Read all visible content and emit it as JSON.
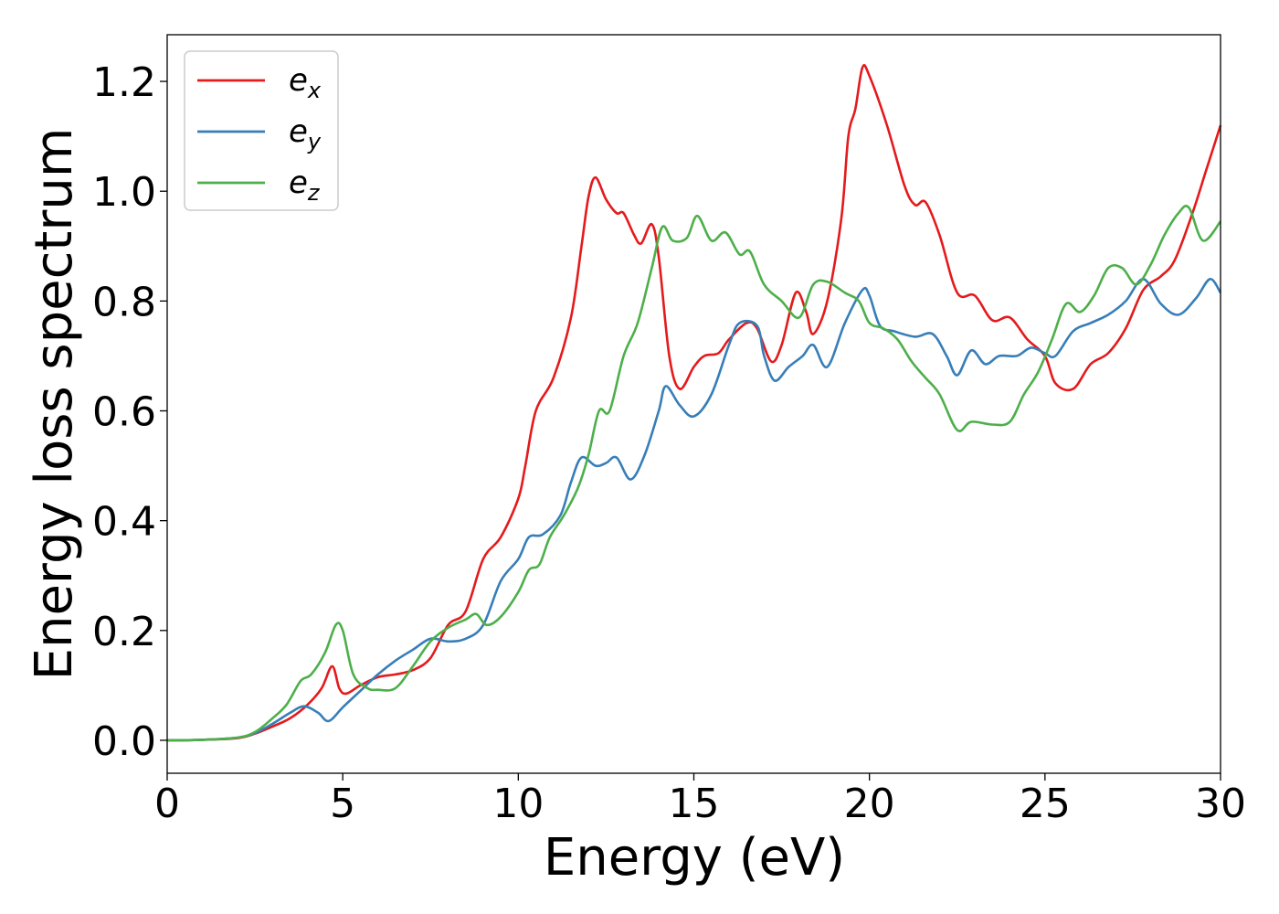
{
  "chart_data": {
    "type": "line",
    "xlabel": "Energy (eV)",
    "ylabel": "Energy loss spectrum",
    "xlim": [
      0,
      30
    ],
    "ylim": [
      -0.06,
      1.285
    ],
    "xticks": [
      0,
      5,
      10,
      15,
      20,
      25,
      30
    ],
    "yticks": [
      0.0,
      0.2,
      0.4,
      0.6,
      0.8,
      1.0,
      1.2
    ],
    "xtick_labels": [
      "0",
      "5",
      "10",
      "15",
      "20",
      "25",
      "30"
    ],
    "ytick_labels": [
      "0.0",
      "0.2",
      "0.4",
      "0.6",
      "0.8",
      "1.0",
      "1.2"
    ],
    "grid": false,
    "legend_position": "top-left",
    "series": [
      {
        "name": "e_x",
        "base": "e",
        "sub": "x",
        "color": "#e41a1c",
        "points": [
          [
            0,
            0
          ],
          [
            1,
            0.001
          ],
          [
            2,
            0.004
          ],
          [
            2.5,
            0.012
          ],
          [
            3,
            0.025
          ],
          [
            3.5,
            0.04
          ],
          [
            4,
            0.065
          ],
          [
            4.4,
            0.095
          ],
          [
            4.7,
            0.135
          ],
          [
            4.9,
            0.095
          ],
          [
            5.1,
            0.085
          ],
          [
            5.5,
            0.1
          ],
          [
            6,
            0.115
          ],
          [
            6.5,
            0.12
          ],
          [
            7,
            0.128
          ],
          [
            7.5,
            0.15
          ],
          [
            8,
            0.21
          ],
          [
            8.5,
            0.235
          ],
          [
            9,
            0.33
          ],
          [
            9.5,
            0.37
          ],
          [
            10,
            0.44
          ],
          [
            10.2,
            0.5
          ],
          [
            10.5,
            0.6
          ],
          [
            11,
            0.66
          ],
          [
            11.5,
            0.77
          ],
          [
            11.8,
            0.9
          ],
          [
            12,
            0.99
          ],
          [
            12.2,
            1.025
          ],
          [
            12.5,
            0.985
          ],
          [
            12.8,
            0.96
          ],
          [
            13,
            0.96
          ],
          [
            13.3,
            0.92
          ],
          [
            13.5,
            0.905
          ],
          [
            13.8,
            0.94
          ],
          [
            14,
            0.88
          ],
          [
            14.3,
            0.7
          ],
          [
            14.6,
            0.64
          ],
          [
            15,
            0.68
          ],
          [
            15.3,
            0.7
          ],
          [
            15.7,
            0.705
          ],
          [
            16,
            0.73
          ],
          [
            16.5,
            0.76
          ],
          [
            16.8,
            0.75
          ],
          [
            17.2,
            0.69
          ],
          [
            17.5,
            0.72
          ],
          [
            17.9,
            0.815
          ],
          [
            18.2,
            0.78
          ],
          [
            18.4,
            0.74
          ],
          [
            18.8,
            0.8
          ],
          [
            19.2,
            0.95
          ],
          [
            19.4,
            1.1
          ],
          [
            19.6,
            1.15
          ],
          [
            19.8,
            1.225
          ],
          [
            20,
            1.21
          ],
          [
            20.5,
            1.12
          ],
          [
            21,
            1.01
          ],
          [
            21.3,
            0.975
          ],
          [
            21.6,
            0.98
          ],
          [
            22,
            0.92
          ],
          [
            22.5,
            0.815
          ],
          [
            23,
            0.81
          ],
          [
            23.5,
            0.765
          ],
          [
            24,
            0.77
          ],
          [
            24.5,
            0.73
          ],
          [
            25,
            0.7
          ],
          [
            25.3,
            0.65
          ],
          [
            25.8,
            0.64
          ],
          [
            26.3,
            0.685
          ],
          [
            26.8,
            0.705
          ],
          [
            27.3,
            0.75
          ],
          [
            27.8,
            0.82
          ],
          [
            28.3,
            0.845
          ],
          [
            28.7,
            0.875
          ],
          [
            29.2,
            0.96
          ],
          [
            29.6,
            1.04
          ],
          [
            30,
            1.12
          ]
        ]
      },
      {
        "name": "e_y",
        "base": "e",
        "sub": "y",
        "color": "#377eb8",
        "points": [
          [
            0,
            0
          ],
          [
            1,
            0.001
          ],
          [
            2,
            0.005
          ],
          [
            2.5,
            0.013
          ],
          [
            3,
            0.03
          ],
          [
            3.5,
            0.05
          ],
          [
            3.9,
            0.062
          ],
          [
            4.3,
            0.05
          ],
          [
            4.6,
            0.035
          ],
          [
            5,
            0.06
          ],
          [
            5.5,
            0.09
          ],
          [
            6,
            0.12
          ],
          [
            6.5,
            0.145
          ],
          [
            7,
            0.165
          ],
          [
            7.5,
            0.185
          ],
          [
            8,
            0.18
          ],
          [
            8.5,
            0.185
          ],
          [
            9,
            0.21
          ],
          [
            9.5,
            0.29
          ],
          [
            10,
            0.33
          ],
          [
            10.3,
            0.37
          ],
          [
            10.7,
            0.375
          ],
          [
            11.2,
            0.41
          ],
          [
            11.5,
            0.47
          ],
          [
            11.8,
            0.515
          ],
          [
            12.2,
            0.5
          ],
          [
            12.5,
            0.505
          ],
          [
            12.8,
            0.515
          ],
          [
            13.2,
            0.475
          ],
          [
            13.6,
            0.52
          ],
          [
            14,
            0.6
          ],
          [
            14.2,
            0.645
          ],
          [
            14.6,
            0.61
          ],
          [
            15,
            0.59
          ],
          [
            15.5,
            0.63
          ],
          [
            16,
            0.72
          ],
          [
            16.3,
            0.76
          ],
          [
            16.8,
            0.755
          ],
          [
            17,
            0.7
          ],
          [
            17.3,
            0.655
          ],
          [
            17.7,
            0.68
          ],
          [
            18.1,
            0.7
          ],
          [
            18.4,
            0.72
          ],
          [
            18.8,
            0.68
          ],
          [
            19.3,
            0.76
          ],
          [
            19.8,
            0.82
          ],
          [
            20,
            0.81
          ],
          [
            20.3,
            0.755
          ],
          [
            20.7,
            0.745
          ],
          [
            21.3,
            0.735
          ],
          [
            21.8,
            0.74
          ],
          [
            22.2,
            0.7
          ],
          [
            22.5,
            0.665
          ],
          [
            22.9,
            0.71
          ],
          [
            23.3,
            0.685
          ],
          [
            23.7,
            0.7
          ],
          [
            24.2,
            0.7
          ],
          [
            24.6,
            0.715
          ],
          [
            25,
            0.705
          ],
          [
            25.3,
            0.7
          ],
          [
            25.8,
            0.745
          ],
          [
            26.3,
            0.76
          ],
          [
            26.8,
            0.775
          ],
          [
            27.3,
            0.8
          ],
          [
            27.8,
            0.84
          ],
          [
            28.3,
            0.795
          ],
          [
            28.8,
            0.775
          ],
          [
            29.3,
            0.805
          ],
          [
            29.7,
            0.84
          ],
          [
            30,
            0.815
          ]
        ]
      },
      {
        "name": "e_z",
        "base": "e",
        "sub": "z",
        "color": "#4daf4a",
        "points": [
          [
            0,
            0
          ],
          [
            1,
            0.001
          ],
          [
            2,
            0.005
          ],
          [
            2.5,
            0.015
          ],
          [
            3,
            0.04
          ],
          [
            3.4,
            0.065
          ],
          [
            3.8,
            0.108
          ],
          [
            4.1,
            0.12
          ],
          [
            4.5,
            0.16
          ],
          [
            4.8,
            0.21
          ],
          [
            5,
            0.2
          ],
          [
            5.3,
            0.12
          ],
          [
            5.7,
            0.095
          ],
          [
            6,
            0.092
          ],
          [
            6.5,
            0.095
          ],
          [
            7,
            0.135
          ],
          [
            7.5,
            0.18
          ],
          [
            8,
            0.205
          ],
          [
            8.5,
            0.22
          ],
          [
            8.8,
            0.23
          ],
          [
            9.1,
            0.21
          ],
          [
            9.5,
            0.225
          ],
          [
            10,
            0.27
          ],
          [
            10.3,
            0.31
          ],
          [
            10.6,
            0.32
          ],
          [
            10.9,
            0.37
          ],
          [
            11.3,
            0.41
          ],
          [
            11.7,
            0.46
          ],
          [
            12,
            0.52
          ],
          [
            12.3,
            0.6
          ],
          [
            12.6,
            0.6
          ],
          [
            13,
            0.7
          ],
          [
            13.4,
            0.76
          ],
          [
            13.8,
            0.86
          ],
          [
            14.1,
            0.935
          ],
          [
            14.4,
            0.91
          ],
          [
            14.8,
            0.915
          ],
          [
            15.1,
            0.955
          ],
          [
            15.5,
            0.91
          ],
          [
            15.9,
            0.925
          ],
          [
            16.3,
            0.885
          ],
          [
            16.6,
            0.89
          ],
          [
            17,
            0.83
          ],
          [
            17.5,
            0.8
          ],
          [
            18,
            0.77
          ],
          [
            18.4,
            0.83
          ],
          [
            18.8,
            0.835
          ],
          [
            19.3,
            0.815
          ],
          [
            19.7,
            0.8
          ],
          [
            20,
            0.76
          ],
          [
            20.4,
            0.75
          ],
          [
            20.8,
            0.73
          ],
          [
            21.2,
            0.69
          ],
          [
            21.6,
            0.66
          ],
          [
            22,
            0.63
          ],
          [
            22.5,
            0.565
          ],
          [
            22.9,
            0.58
          ],
          [
            23.5,
            0.575
          ],
          [
            24,
            0.58
          ],
          [
            24.4,
            0.63
          ],
          [
            24.8,
            0.67
          ],
          [
            25.2,
            0.73
          ],
          [
            25.6,
            0.795
          ],
          [
            26,
            0.78
          ],
          [
            26.4,
            0.81
          ],
          [
            26.8,
            0.86
          ],
          [
            27.2,
            0.86
          ],
          [
            27.6,
            0.83
          ],
          [
            28,
            0.865
          ],
          [
            28.4,
            0.92
          ],
          [
            28.8,
            0.96
          ],
          [
            29.1,
            0.97
          ],
          [
            29.5,
            0.91
          ],
          [
            30,
            0.945
          ]
        ]
      }
    ]
  }
}
